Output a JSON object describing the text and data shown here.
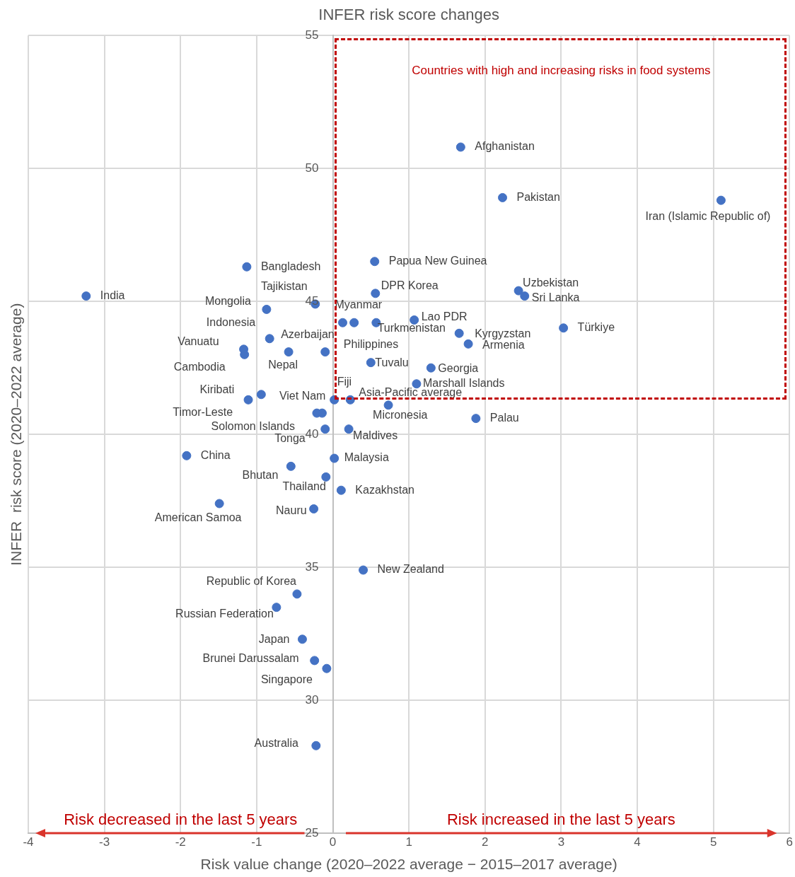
{
  "chart_data": {
    "type": "scatter",
    "title": "INFER risk score changes",
    "xlabel": "Risk value change (2020–2022 average − 2015–2017 average)",
    "ylabel": "INFER  risk score (2020–2022 average)",
    "xlim": [
      -4,
      6
    ],
    "xticks": [
      -4,
      -3,
      -2,
      -1,
      0,
      1,
      2,
      3,
      4,
      5,
      6
    ],
    "ylim": [
      25,
      55
    ],
    "yticks": [
      25,
      30,
      35,
      40,
      45,
      50,
      55
    ],
    "grid": true,
    "legend": false,
    "marker": "circle",
    "series": [
      {
        "color": "#4472c4",
        "x": [
          1.68,
          2.23,
          5.1,
          0.55,
          -1.13,
          -3.24,
          0.56,
          2.44,
          2.52,
          -0.23,
          -0.87,
          1.07,
          0.13,
          0.28,
          0.57,
          1.66,
          3.03,
          1.78,
          -0.83,
          -1.17,
          -1.16,
          -0.58,
          -0.1,
          0.5,
          1.29,
          1.1,
          0.02,
          0.23,
          0.73,
          -0.94,
          -1.11,
          -0.21,
          -0.14,
          -0.1,
          0.21,
          1.88,
          -1.92,
          0.02,
          -0.55,
          -0.09,
          0.11,
          -1.49,
          -0.25,
          0.4,
          -0.47,
          -0.74,
          -0.4,
          -0.24,
          -0.08,
          -0.22
        ],
        "values": [
          50.8,
          48.9,
          48.8,
          46.5,
          46.3,
          45.2,
          45.3,
          45.4,
          45.2,
          44.9,
          44.7,
          44.3,
          44.2,
          44.2,
          44.2,
          43.8,
          44.0,
          43.4,
          43.6,
          43.2,
          43.0,
          43.1,
          43.1,
          42.7,
          42.5,
          41.9,
          41.3,
          41.3,
          41.1,
          41.5,
          41.3,
          40.8,
          40.8,
          40.2,
          40.2,
          40.6,
          39.2,
          39.1,
          38.8,
          38.4,
          37.9,
          37.4,
          37.2,
          34.9,
          34.0,
          33.5,
          32.3,
          31.5,
          31.2,
          28.3
        ]
      }
    ],
    "annotations": [
      "Countries with high and increasing risks in food systems",
      "Risk decreased in the last 5 years",
      "Risk increased in the last 5 years",
      {
        "text": "Afghanistan",
        "x": 1.68,
        "y": 50.8
      },
      {
        "text": "Pakistan",
        "x": 2.23,
        "y": 48.9
      },
      {
        "text": "Iran (Islamic Republic of)",
        "x": 5.1,
        "y": 48.8
      },
      {
        "text": "Papua New Guinea",
        "x": 0.55,
        "y": 46.5
      },
      {
        "text": "Bangladesh",
        "x": -1.13,
        "y": 46.3
      },
      {
        "text": "India",
        "x": -3.24,
        "y": 45.2
      },
      {
        "text": "DPR Korea",
        "x": 0.56,
        "y": 45.3
      },
      {
        "text": "Uzbekistan",
        "x": 2.44,
        "y": 45.4
      },
      {
        "text": "Sri Lanka",
        "x": 2.52,
        "y": 45.2
      },
      {
        "text": "Tajikistan",
        "x": -0.23,
        "y": 44.9
      },
      {
        "text": "Mongolia",
        "x": -0.87,
        "y": 44.7
      },
      {
        "text": "Lao PDR",
        "x": 1.07,
        "y": 44.3
      },
      {
        "text": "Myanmar",
        "x": 0.13,
        "y": 44.2
      },
      {
        "text": "Turkmenistan",
        "x": 0.28,
        "y": 44.2
      },
      {
        "text": "Philippines",
        "x": 0.57,
        "y": 44.2
      },
      {
        "text": "Kyrgyzstan",
        "x": 1.66,
        "y": 43.8
      },
      {
        "text": "Türkiye",
        "x": 3.03,
        "y": 44.0
      },
      {
        "text": "Armenia",
        "x": 1.78,
        "y": 43.4
      },
      {
        "text": "Indonesia",
        "x": -0.83,
        "y": 43.6
      },
      {
        "text": "Vanuatu",
        "x": -1.17,
        "y": 43.2
      },
      {
        "text": "Cambodia",
        "x": -1.16,
        "y": 43.0
      },
      {
        "text": "Nepal",
        "x": -0.58,
        "y": 43.1
      },
      {
        "text": "Azerbaijan",
        "x": -0.1,
        "y": 43.1
      },
      {
        "text": "Tuvalu",
        "x": 0.5,
        "y": 42.7
      },
      {
        "text": "Georgia",
        "x": 1.29,
        "y": 42.5
      },
      {
        "text": "Marshall Islands",
        "x": 1.1,
        "y": 41.9
      },
      {
        "text": "Fiji",
        "x": 0.02,
        "y": 41.3
      },
      {
        "text": "Asia-Pacific average",
        "x": 0.23,
        "y": 41.3
      },
      {
        "text": "Micronesia",
        "x": 0.73,
        "y": 41.1
      },
      {
        "text": "Kiribati",
        "x": -0.94,
        "y": 41.5
      },
      {
        "text": "Timor-Leste",
        "x": -1.11,
        "y": 41.3
      },
      {
        "text": "Solomon Islands",
        "x": -0.21,
        "y": 40.8
      },
      {
        "text": "Viet Nam",
        "x": -0.14,
        "y": 40.8
      },
      {
        "text": "Tonga",
        "x": -0.1,
        "y": 40.2
      },
      {
        "text": "Maldives",
        "x": 0.21,
        "y": 40.2
      },
      {
        "text": "Palau",
        "x": 1.88,
        "y": 40.6
      },
      {
        "text": "China",
        "x": -1.92,
        "y": 39.2
      },
      {
        "text": "Malaysia",
        "x": 0.02,
        "y": 39.1
      },
      {
        "text": "Bhutan",
        "x": -0.55,
        "y": 38.8
      },
      {
        "text": "Thailand",
        "x": -0.09,
        "y": 38.4
      },
      {
        "text": "Kazakhstan",
        "x": 0.11,
        "y": 37.9
      },
      {
        "text": "American Samoa",
        "x": -1.49,
        "y": 37.4
      },
      {
        "text": "Nauru",
        "x": -0.25,
        "y": 37.2
      },
      {
        "text": "New Zealand",
        "x": 0.4,
        "y": 34.9
      },
      {
        "text": "Republic of Korea",
        "x": -0.47,
        "y": 34.0
      },
      {
        "text": "Russian Federation",
        "x": -0.74,
        "y": 33.5
      },
      {
        "text": "Japan",
        "x": -0.4,
        "y": 32.3
      },
      {
        "text": "Brunei Darussalam",
        "x": -0.24,
        "y": 31.5
      },
      {
        "text": "Singapore",
        "x": -0.08,
        "y": 31.2
      },
      {
        "text": "Australia",
        "x": -0.22,
        "y": 28.3
      }
    ]
  }
}
